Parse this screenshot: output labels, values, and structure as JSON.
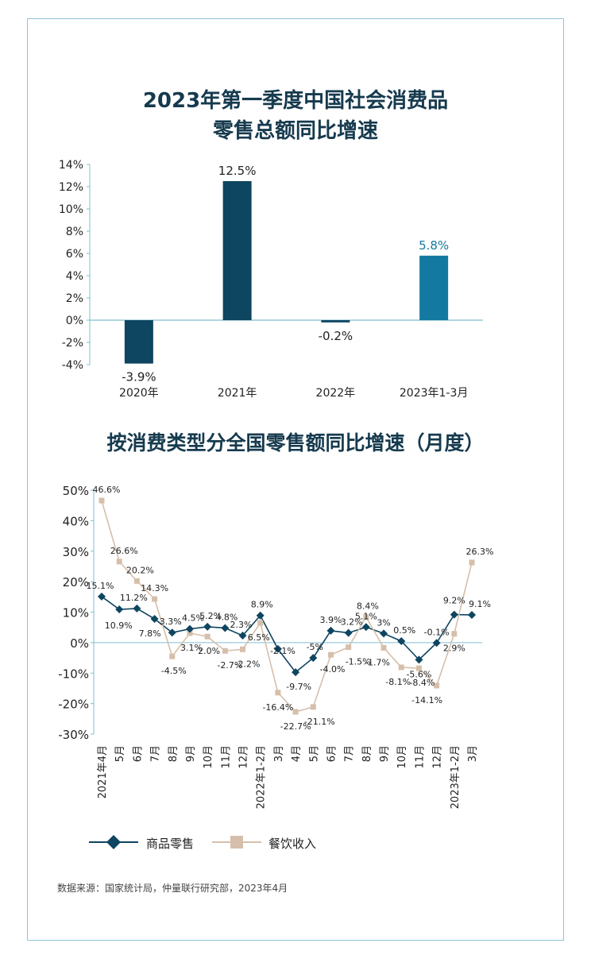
{
  "chart_data": [
    {
      "type": "bar",
      "title": "2023年第一季度中国社会消费品\n零售总额同比增速",
      "title_lines": [
        "2023年第一季度中国社会消费品",
        "零售总额同比增速"
      ],
      "categories": [
        "2020年",
        "2021年",
        "2022年",
        "2023年1-3月"
      ],
      "values": [
        -3.9,
        12.5,
        -0.2,
        5.8
      ],
      "value_labels": [
        "-3.9%",
        "12.5%",
        "-0.2%",
        "5.8%"
      ],
      "ylim": [
        -4,
        14
      ],
      "yticks": [
        -4,
        -2,
        0,
        2,
        4,
        6,
        8,
        10,
        12,
        14
      ],
      "ytick_labels": [
        "-4%",
        "-2%",
        "0%",
        "2%",
        "4%",
        "6%",
        "8%",
        "10%",
        "12%",
        "14%"
      ],
      "colors": [
        "#0e4560",
        "#0e4560",
        "#0e4560",
        "#1479a0"
      ],
      "grid": false
    },
    {
      "type": "line",
      "title": "按消费类型分全国零售额同比增速（月度）",
      "categories": [
        "2021年4月",
        "5月",
        "6月",
        "7月",
        "8月",
        "9月",
        "10月",
        "11月",
        "12月",
        "2022年1-2月",
        "3月",
        "4月",
        "5月",
        "6月",
        "7月",
        "8月",
        "9月",
        "10月",
        "11月",
        "12月",
        "2023年1-2月",
        "3月"
      ],
      "ylim": [
        -30,
        50
      ],
      "yticks": [
        -30,
        -20,
        -10,
        0,
        10,
        20,
        30,
        40,
        50
      ],
      "ytick_labels": [
        "-30%",
        "-20%",
        "-10%",
        "0%",
        "10%",
        "20%",
        "30%",
        "40%",
        "50%"
      ],
      "series": [
        {
          "name": "商品零售",
          "color": "#0e4560",
          "marker": "diamond",
          "values": [
            15.1,
            10.9,
            11.2,
            7.8,
            3.3,
            4.5,
            5.2,
            4.8,
            2.3,
            8.9,
            -2.1,
            -9.7,
            -5,
            3.9,
            3.2,
            5.1,
            3,
            0.5,
            -5.6,
            -0.1,
            9.2,
            9.1
          ],
          "labels": [
            "15.1%",
            "10.9%",
            "11.2%",
            "7.8%",
            "3.3%",
            "4.5%",
            "5.2%",
            "4.8%",
            "2.3%",
            "8.9%",
            "-2.1%",
            "-9.7%",
            "-5%",
            "3.9%",
            "3.2%",
            "5.1%",
            "3%",
            "0.5%",
            "-5.6%",
            "-0.1%",
            "9.2%",
            "9.1%"
          ]
        },
        {
          "name": "餐饮收入",
          "color": "#d6bfaa",
          "marker": "square",
          "values": [
            46.6,
            26.6,
            20.2,
            14.3,
            -4.5,
            3.1,
            2.0,
            -2.7,
            -2.2,
            6.5,
            -16.4,
            -22.7,
            -21.1,
            -4.0,
            -1.5,
            8.4,
            -1.7,
            -8.1,
            -8.4,
            -14.1,
            2.9,
            26.3
          ],
          "labels": [
            "46.6%",
            "26.6%",
            "20.2%",
            "14.3%",
            "-4.5%",
            "3.1%",
            "2.0%",
            "-2.7%",
            "-2.2%",
            "6.5%",
            "-16.4%",
            "-22.7%",
            "-21.1%",
            "-4.0%",
            "-1.5%",
            "8.4%",
            "-1.7%",
            "-8.1%",
            "-8.4%",
            "-14.1%",
            "2.9%",
            "26.3%"
          ]
        }
      ],
      "legend_position": "bottom-left",
      "grid": false
    }
  ],
  "source": "数据来源：国家统计局，仲量联行研究部，2023年4月"
}
